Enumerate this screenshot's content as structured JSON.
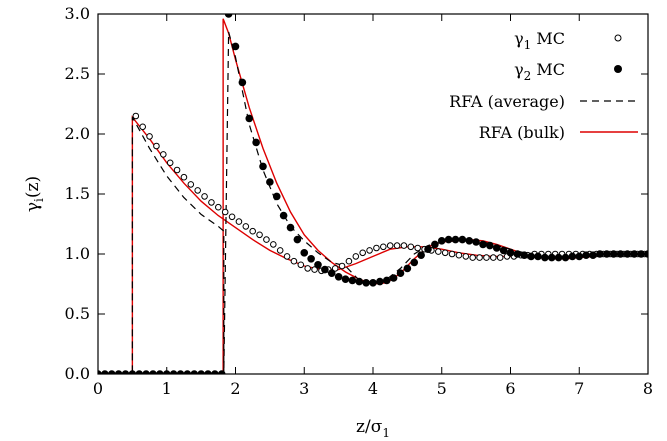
{
  "chart_data": {
    "type": "scatter",
    "title": "",
    "xlabel_main": "z/σ",
    "xlabel_sub": "1",
    "ylabel_main": "γ",
    "ylabel_sub": "i",
    "ylabel_tail": "(z)",
    "xlim": [
      0,
      8
    ],
    "ylim": [
      0,
      3
    ],
    "xticks": [
      0,
      1,
      2,
      3,
      4,
      5,
      6,
      7,
      8
    ],
    "yticks": [
      0.0,
      0.5,
      1.0,
      1.5,
      2.0,
      2.5,
      3.0
    ],
    "xtick_labels": [
      "0",
      "1",
      "2",
      "3",
      "4",
      "5",
      "6",
      "7",
      "8"
    ],
    "ytick_labels": [
      "0.0",
      "0.5",
      "1.0",
      "1.5",
      "2.0",
      "2.5",
      "3.0"
    ],
    "grid": false,
    "legend_position": "top-right",
    "legend": [
      {
        "main": "γ",
        "sub": "1",
        "tail": " MC"
      },
      {
        "main": "γ",
        "sub": "2",
        "tail": " MC"
      },
      {
        "main": "RFA (average)",
        "sub": "",
        "tail": ""
      },
      {
        "main": "RFA (bulk)",
        "sub": "",
        "tail": ""
      }
    ],
    "colors": {
      "rfa_bulk": "#dd0000",
      "rfa_average": "#000000",
      "markers": "#000000"
    },
    "series": [
      {
        "marker": "open-circle",
        "x": [
          0.0,
          0.1,
          0.2,
          0.3,
          0.4,
          0.5,
          0.55,
          0.65,
          0.75,
          0.85,
          0.95,
          1.05,
          1.15,
          1.25,
          1.35,
          1.45,
          1.55,
          1.65,
          1.75,
          1.85,
          1.95,
          2.05,
          2.15,
          2.25,
          2.35,
          2.45,
          2.55,
          2.65,
          2.75,
          2.85,
          2.95,
          3.05,
          3.15,
          3.25,
          3.35,
          3.45,
          3.55,
          3.65,
          3.75,
          3.85,
          3.95,
          4.05,
          4.15,
          4.25,
          4.35,
          4.45,
          4.55,
          4.65,
          4.75,
          4.85,
          4.95,
          5.05,
          5.15,
          5.25,
          5.35,
          5.45,
          5.55,
          5.65,
          5.75,
          5.85,
          5.95,
          6.05,
          6.15,
          6.25,
          6.35,
          6.45,
          6.55,
          6.65,
          6.75,
          6.85,
          6.95,
          7.05,
          7.15,
          7.25,
          7.35,
          7.45,
          7.55,
          7.65,
          7.75,
          7.85,
          7.95
        ],
        "y": [
          0.0,
          0.0,
          0.0,
          0.0,
          0.0,
          0.0,
          2.15,
          2.06,
          1.98,
          1.9,
          1.83,
          1.76,
          1.7,
          1.64,
          1.58,
          1.53,
          1.48,
          1.43,
          1.39,
          1.35,
          1.31,
          1.27,
          1.23,
          1.19,
          1.16,
          1.12,
          1.08,
          1.03,
          0.98,
          0.94,
          0.91,
          0.88,
          0.87,
          0.86,
          0.87,
          0.88,
          0.9,
          0.94,
          0.98,
          1.01,
          1.03,
          1.05,
          1.06,
          1.07,
          1.07,
          1.07,
          1.06,
          1.05,
          1.04,
          1.03,
          1.02,
          1.01,
          1.0,
          0.99,
          0.98,
          0.97,
          0.97,
          0.97,
          0.97,
          0.97,
          0.98,
          0.98,
          0.99,
          0.99,
          1.0,
          1.0,
          1.0,
          1.0,
          1.0,
          1.0,
          1.0,
          1.0,
          1.0,
          1.0,
          1.0,
          1.0,
          1.0,
          1.0,
          1.0,
          1.0,
          1.0
        ]
      },
      {
        "marker": "filled-circle",
        "x": [
          0.0,
          0.1,
          0.2,
          0.3,
          0.4,
          0.5,
          0.6,
          0.7,
          0.8,
          0.9,
          1.0,
          1.1,
          1.2,
          1.3,
          1.4,
          1.5,
          1.6,
          1.7,
          1.8,
          1.9,
          2.0,
          2.1,
          2.2,
          2.3,
          2.4,
          2.5,
          2.6,
          2.7,
          2.8,
          2.9,
          3.0,
          3.1,
          3.2,
          3.3,
          3.4,
          3.5,
          3.6,
          3.7,
          3.8,
          3.9,
          4.0,
          4.1,
          4.2,
          4.3,
          4.4,
          4.5,
          4.6,
          4.7,
          4.8,
          4.9,
          5.0,
          5.1,
          5.2,
          5.3,
          5.4,
          5.5,
          5.6,
          5.7,
          5.8,
          5.9,
          6.0,
          6.1,
          6.2,
          6.3,
          6.4,
          6.5,
          6.6,
          6.7,
          6.8,
          6.9,
          7.0,
          7.1,
          7.2,
          7.3,
          7.4,
          7.5,
          7.6,
          7.7,
          7.8,
          7.9,
          8.0
        ],
        "y": [
          0.0,
          0.0,
          0.0,
          0.0,
          0.0,
          0.0,
          0.0,
          0.0,
          0.0,
          0.0,
          0.0,
          0.0,
          0.0,
          0.0,
          0.0,
          0.0,
          0.0,
          0.0,
          0.0,
          3.0,
          2.73,
          2.43,
          2.13,
          1.93,
          1.73,
          1.6,
          1.48,
          1.32,
          1.22,
          1.12,
          1.01,
          0.96,
          0.91,
          0.87,
          0.84,
          0.81,
          0.79,
          0.78,
          0.77,
          0.76,
          0.76,
          0.77,
          0.78,
          0.8,
          0.84,
          0.88,
          0.93,
          0.99,
          1.04,
          1.08,
          1.11,
          1.12,
          1.12,
          1.12,
          1.11,
          1.1,
          1.08,
          1.07,
          1.05,
          1.03,
          1.01,
          1.0,
          0.99,
          0.98,
          0.98,
          0.97,
          0.97,
          0.97,
          0.97,
          0.98,
          0.98,
          0.99,
          0.99,
          1.0,
          1.0,
          1.0,
          1.0,
          1.0,
          1.0,
          1.0,
          1.0
        ]
      },
      {
        "style": "dashed",
        "x": [
          0.0,
          0.5,
          0.5,
          0.75,
          1.0,
          1.25,
          1.5,
          1.75,
          1.83,
          1.83,
          1.9,
          2.0,
          2.2,
          2.4,
          2.6,
          2.8,
          3.0,
          3.2,
          3.4,
          3.6,
          3.8,
          4.0,
          4.2,
          4.4,
          4.6,
          4.8,
          5.0,
          5.2,
          5.4,
          5.6,
          5.8,
          6.0,
          6.2,
          6.4,
          6.6,
          6.8,
          7.0,
          7.5,
          8.0
        ],
        "y": [
          0.0,
          0.0,
          2.14,
          1.88,
          1.65,
          1.47,
          1.33,
          1.23,
          1.19,
          0.0,
          2.85,
          2.64,
          2.08,
          1.7,
          1.42,
          1.23,
          1.11,
          1.01,
          0.93,
          0.9,
          0.78,
          0.75,
          0.79,
          0.88,
          1.0,
          1.07,
          1.1,
          1.11,
          1.11,
          1.1,
          1.07,
          1.04,
          1.01,
          0.99,
          0.98,
          0.98,
          0.98,
          0.99,
          1.0
        ]
      },
      {
        "style": "solid",
        "x": [
          0.0,
          0.5,
          0.5,
          0.75,
          1.0,
          1.25,
          1.5,
          1.75,
          2.0,
          2.25,
          2.5,
          2.75,
          3.0,
          3.25,
          3.5,
          3.75,
          4.0,
          4.25,
          4.5,
          4.75,
          5.0,
          5.25,
          5.5,
          5.75,
          6.0,
          6.25,
          6.5,
          6.75,
          7.0,
          7.5,
          8.0
        ],
        "y": [
          0.0,
          0.0,
          2.14,
          1.96,
          1.76,
          1.59,
          1.44,
          1.32,
          1.22,
          1.12,
          1.03,
          0.96,
          0.9,
          0.87,
          0.87,
          0.92,
          0.98,
          1.04,
          1.06,
          1.06,
          1.04,
          1.01,
          0.99,
          0.98,
          0.98,
          0.98,
          0.99,
          0.99,
          1.0,
          1.0,
          1.0
        ]
      },
      {
        "style": "solid",
        "x": [
          0.0,
          1.82,
          1.82,
          1.9,
          2.0,
          2.2,
          2.4,
          2.6,
          2.8,
          3.0,
          3.2,
          3.4,
          3.6,
          3.8,
          4.0,
          4.2,
          4.4,
          4.6,
          4.8,
          5.0,
          5.2,
          5.4,
          5.6,
          5.8,
          6.0,
          6.2,
          6.4,
          6.6,
          6.8,
          7.0,
          7.5,
          8.0
        ],
        "y": [
          0.0,
          0.0,
          2.96,
          2.84,
          2.62,
          2.22,
          1.88,
          1.59,
          1.35,
          1.16,
          1.03,
          0.93,
          0.85,
          0.79,
          0.75,
          0.76,
          0.84,
          0.96,
          1.06,
          1.1,
          1.11,
          1.12,
          1.11,
          1.08,
          1.04,
          1.0,
          0.97,
          0.96,
          0.96,
          0.97,
          0.99,
          1.0
        ]
      }
    ]
  }
}
